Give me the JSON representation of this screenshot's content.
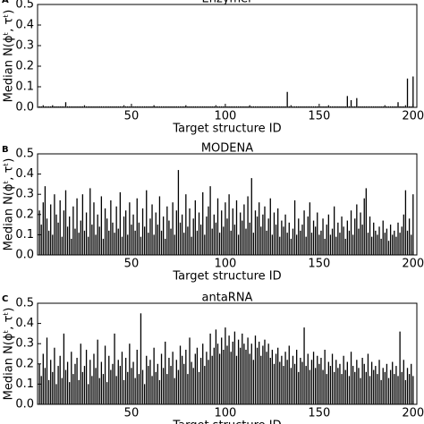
{
  "chart_data": [
    {
      "type": "bar",
      "panel_label": "A",
      "title": "Enzymer",
      "xlabel": "Target structure ID",
      "ylabel": "Median N(ϕᵗ, τᵗ)",
      "color": "#000000",
      "xlim": [
        0,
        202
      ],
      "ylim": [
        0,
        0.5
      ],
      "xticks": [
        50,
        100,
        150,
        200
      ],
      "yticks": [
        {
          "value": 0,
          "label": "0.0"
        },
        0.1,
        0.2,
        0.3,
        0.4,
        0.5
      ],
      "x": [
        1,
        2,
        3,
        4,
        5,
        6,
        7,
        8,
        9,
        10,
        11,
        12,
        13,
        14,
        15,
        16,
        17,
        18,
        19,
        20,
        21,
        22,
        23,
        24,
        25,
        26,
        27,
        28,
        29,
        30,
        31,
        32,
        33,
        34,
        35,
        36,
        37,
        38,
        39,
        40,
        41,
        42,
        43,
        44,
        45,
        46,
        47,
        48,
        49,
        50,
        51,
        52,
        53,
        54,
        55,
        56,
        57,
        58,
        59,
        60,
        61,
        62,
        63,
        64,
        65,
        66,
        67,
        68,
        69,
        70,
        71,
        72,
        73,
        74,
        75,
        76,
        77,
        78,
        79,
        80,
        81,
        82,
        83,
        84,
        85,
        86,
        87,
        88,
        89,
        90,
        91,
        92,
        93,
        94,
        95,
        96,
        97,
        98,
        99,
        100,
        101,
        102,
        103,
        104,
        105,
        106,
        107,
        108,
        109,
        110,
        111,
        112,
        113,
        114,
        115,
        116,
        117,
        118,
        119,
        120,
        121,
        122,
        123,
        124,
        125,
        126,
        127,
        128,
        129,
        130,
        131,
        132,
        133,
        134,
        135,
        136,
        137,
        138,
        139,
        140,
        141,
        142,
        143,
        144,
        145,
        146,
        147,
        148,
        149,
        150,
        151,
        152,
        153,
        154,
        155,
        156,
        157,
        158,
        159,
        160,
        161,
        162,
        163,
        164,
        165,
        166,
        167,
        168,
        169,
        170,
        171,
        172,
        173,
        174,
        175,
        176,
        177,
        178,
        179,
        180,
        181,
        182,
        183,
        184,
        185,
        186,
        187,
        188,
        189,
        190,
        191,
        192,
        193,
        194,
        195,
        196,
        197,
        198,
        199,
        200
      ],
      "values": [
        0.005,
        0.005,
        0.01,
        0.005,
        0.005,
        0.005,
        0.005,
        0.01,
        0.005,
        0.005,
        0.005,
        0.005,
        0.005,
        0.005,
        0.025,
        0.005,
        0.005,
        0.005,
        0.005,
        0.005,
        0.005,
        0.005,
        0.005,
        0.005,
        0.01,
        0.005,
        0.005,
        0.005,
        0.005,
        0.005,
        0.005,
        0.005,
        0.005,
        0.005,
        0.005,
        0.005,
        0.005,
        0.005,
        0.005,
        0.005,
        0.005,
        0.005,
        0.005,
        0.005,
        0.005,
        0.01,
        0.005,
        0.005,
        0.005,
        0.005,
        0.005,
        0.005,
        0.005,
        0.005,
        0.005,
        0.005,
        0.005,
        0.005,
        0.005,
        0.005,
        0.005,
        0.01,
        0.005,
        0.005,
        0.005,
        0.005,
        0.005,
        0.005,
        0.005,
        0.005,
        0.005,
        0.005,
        0.005,
        0.005,
        0.005,
        0.005,
        0.005,
        0.005,
        0.01,
        0.005,
        0.005,
        0.005,
        0.005,
        0.005,
        0.005,
        0.005,
        0.005,
        0.005,
        0.005,
        0.005,
        0.005,
        0.005,
        0.005,
        0.005,
        0.01,
        0.005,
        0.005,
        0.005,
        0.005,
        0.005,
        0.005,
        0.005,
        0.005,
        0.005,
        0.005,
        0.005,
        0.005,
        0.005,
        0.005,
        0.005,
        0.005,
        0.005,
        0.01,
        0.005,
        0.005,
        0.005,
        0.005,
        0.005,
        0.005,
        0.005,
        0.005,
        0.005,
        0.005,
        0.005,
        0.005,
        0.005,
        0.005,
        0.005,
        0.005,
        0.005,
        0.005,
        0.005,
        0.075,
        0.005,
        0.01,
        0.005,
        0.005,
        0.005,
        0.005,
        0.005,
        0.005,
        0.005,
        0.005,
        0.005,
        0.005,
        0.005,
        0.005,
        0.005,
        0.005,
        0.005,
        0.005,
        0.005,
        0.005,
        0.005,
        0.01,
        0.005,
        0.005,
        0.005,
        0.005,
        0.005,
        0.005,
        0.005,
        0.005,
        0.005,
        0.055,
        0.005,
        0.035,
        0.005,
        0.005,
        0.045,
        0.005,
        0.005,
        0.005,
        0.005,
        0.005,
        0.005,
        0.005,
        0.005,
        0.005,
        0.005,
        0.005,
        0.005,
        0.005,
        0.005,
        0.01,
        0.005,
        0.005,
        0.005,
        0.005,
        0.005,
        0.005,
        0.025,
        0.005,
        0.005,
        0.005,
        0.01,
        0.14,
        0.005,
        0.005,
        0.15
      ]
    },
    {
      "type": "bar",
      "panel_label": "B",
      "title": "MODENA",
      "xlabel": "Target structure ID",
      "ylabel": "Median N(ϕᵗ, τᵗ)",
      "color": "#000000",
      "xlim": [
        0,
        202
      ],
      "ylim": [
        0,
        0.5
      ],
      "xticks": [
        50,
        100,
        150,
        200
      ],
      "yticks": [
        {
          "value": 0,
          "label": "0.0"
        },
        0.1,
        0.2,
        0.3,
        0.4,
        0.5
      ],
      "x": [
        1,
        2,
        3,
        4,
        5,
        6,
        7,
        8,
        9,
        10,
        11,
        12,
        13,
        14,
        15,
        16,
        17,
        18,
        19,
        20,
        21,
        22,
        23,
        24,
        25,
        26,
        27,
        28,
        29,
        30,
        31,
        32,
        33,
        34,
        35,
        36,
        37,
        38,
        39,
        40,
        41,
        42,
        43,
        44,
        45,
        46,
        47,
        48,
        49,
        50,
        51,
        52,
        53,
        54,
        55,
        56,
        57,
        58,
        59,
        60,
        61,
        62,
        63,
        64,
        65,
        66,
        67,
        68,
        69,
        70,
        71,
        72,
        73,
        74,
        75,
        76,
        77,
        78,
        79,
        80,
        81,
        82,
        83,
        84,
        85,
        86,
        87,
        88,
        89,
        90,
        91,
        92,
        93,
        94,
        95,
        96,
        97,
        98,
        99,
        100,
        101,
        102,
        103,
        104,
        105,
        106,
        107,
        108,
        109,
        110,
        111,
        112,
        113,
        114,
        115,
        116,
        117,
        118,
        119,
        120,
        121,
        122,
        123,
        124,
        125,
        126,
        127,
        128,
        129,
        130,
        131,
        132,
        133,
        134,
        135,
        136,
        137,
        138,
        139,
        140,
        141,
        142,
        143,
        144,
        145,
        146,
        147,
        148,
        149,
        150,
        151,
        152,
        153,
        154,
        155,
        156,
        157,
        158,
        159,
        160,
        161,
        162,
        163,
        164,
        165,
        166,
        167,
        168,
        169,
        170,
        171,
        172,
        173,
        174,
        175,
        176,
        177,
        178,
        179,
        180,
        181,
        182,
        183,
        184,
        185,
        186,
        187,
        188,
        189,
        190,
        191,
        192,
        193,
        194,
        195,
        196,
        197,
        198,
        199,
        200
      ],
      "values": [
        0.22,
        0.15,
        0.26,
        0.34,
        0.18,
        0.12,
        0.25,
        0.1,
        0.3,
        0.2,
        0.16,
        0.27,
        0.09,
        0.22,
        0.32,
        0.14,
        0.19,
        0.08,
        0.24,
        0.13,
        0.28,
        0.11,
        0.17,
        0.3,
        0.12,
        0.21,
        0.09,
        0.33,
        0.15,
        0.26,
        0.1,
        0.2,
        0.14,
        0.29,
        0.08,
        0.23,
        0.18,
        0.12,
        0.27,
        0.16,
        0.11,
        0.24,
        0.13,
        0.31,
        0.09,
        0.19,
        0.22,
        0.1,
        0.26,
        0.15,
        0.2,
        0.12,
        0.28,
        0.16,
        0.09,
        0.23,
        0.14,
        0.32,
        0.11,
        0.18,
        0.25,
        0.1,
        0.21,
        0.15,
        0.29,
        0.12,
        0.19,
        0.08,
        0.24,
        0.17,
        0.13,
        0.26,
        0.1,
        0.22,
        0.42,
        0.16,
        0.2,
        0.11,
        0.3,
        0.14,
        0.23,
        0.09,
        0.18,
        0.27,
        0.12,
        0.21,
        0.15,
        0.31,
        0.1,
        0.19,
        0.24,
        0.34,
        0.13,
        0.2,
        0.16,
        0.28,
        0.11,
        0.22,
        0.14,
        0.26,
        0.18,
        0.3,
        0.12,
        0.23,
        0.15,
        0.27,
        0.1,
        0.21,
        0.17,
        0.25,
        0.13,
        0.29,
        0.16,
        0.38,
        0.11,
        0.22,
        0.19,
        0.26,
        0.14,
        0.2,
        0.24,
        0.12,
        0.18,
        0.28,
        0.1,
        0.21,
        0.15,
        0.23,
        0.09,
        0.17,
        0.14,
        0.2,
        0.11,
        0.16,
        0.08,
        0.13,
        0.27,
        0.1,
        0.18,
        0.12,
        0.15,
        0.22,
        0.09,
        0.19,
        0.26,
        0.11,
        0.17,
        0.14,
        0.21,
        0.1,
        0.12,
        0.18,
        0.08,
        0.15,
        0.2,
        0.1,
        0.13,
        0.24,
        0.09,
        0.16,
        0.11,
        0.19,
        0.14,
        0.08,
        0.17,
        0.12,
        0.22,
        0.1,
        0.18,
        0.25,
        0.13,
        0.21,
        0.15,
        0.28,
        0.33,
        0.11,
        0.19,
        0.09,
        0.16,
        0.12,
        0.1,
        0.14,
        0.08,
        0.17,
        0.11,
        0.13,
        0.07,
        0.15,
        0.1,
        0.12,
        0.09,
        0.16,
        0.11,
        0.14,
        0.2,
        0.32,
        0.12,
        0.18,
        0.1,
        0.3
      ]
    },
    {
      "type": "bar",
      "panel_label": "C",
      "title": "antaRNA",
      "xlabel": "Target structure ID",
      "ylabel": "Median N(ϕᵗ, τᵗ)",
      "color": "#000000",
      "xlim": [
        0,
        202
      ],
      "ylim": [
        0,
        0.5
      ],
      "xticks": [
        50,
        100,
        150,
        200
      ],
      "yticks": [
        {
          "value": 0,
          "label": "0.0"
        },
        0.1,
        0.2,
        0.3,
        0.4,
        0.5
      ],
      "x": [
        1,
        2,
        3,
        4,
        5,
        6,
        7,
        8,
        9,
        10,
        11,
        12,
        13,
        14,
        15,
        16,
        17,
        18,
        19,
        20,
        21,
        22,
        23,
        24,
        25,
        26,
        27,
        28,
        29,
        30,
        31,
        32,
        33,
        34,
        35,
        36,
        37,
        38,
        39,
        40,
        41,
        42,
        43,
        44,
        45,
        46,
        47,
        48,
        49,
        50,
        51,
        52,
        53,
        54,
        55,
        56,
        57,
        58,
        59,
        60,
        61,
        62,
        63,
        64,
        65,
        66,
        67,
        68,
        69,
        70,
        71,
        72,
        73,
        74,
        75,
        76,
        77,
        78,
        79,
        80,
        81,
        82,
        83,
        84,
        85,
        86,
        87,
        88,
        89,
        90,
        91,
        92,
        93,
        94,
        95,
        96,
        97,
        98,
        99,
        100,
        101,
        102,
        103,
        104,
        105,
        106,
        107,
        108,
        109,
        110,
        111,
        112,
        113,
        114,
        115,
        116,
        117,
        118,
        119,
        120,
        121,
        122,
        123,
        124,
        125,
        126,
        127,
        128,
        129,
        130,
        131,
        132,
        133,
        134,
        135,
        136,
        137,
        138,
        139,
        140,
        141,
        142,
        143,
        144,
        145,
        146,
        147,
        148,
        149,
        150,
        151,
        152,
        153,
        154,
        155,
        156,
        157,
        158,
        159,
        160,
        161,
        162,
        163,
        164,
        165,
        166,
        167,
        168,
        169,
        170,
        171,
        172,
        173,
        174,
        175,
        176,
        177,
        178,
        179,
        180,
        181,
        182,
        183,
        184,
        185,
        186,
        187,
        188,
        189,
        190,
        191,
        192,
        193,
        194,
        195,
        196,
        197,
        198,
        199,
        200
      ],
      "values": [
        0.2,
        0.14,
        0.25,
        0.18,
        0.33,
        0.12,
        0.22,
        0.16,
        0.28,
        0.1,
        0.19,
        0.24,
        0.13,
        0.35,
        0.17,
        0.21,
        0.11,
        0.26,
        0.15,
        0.2,
        0.23,
        0.12,
        0.3,
        0.16,
        0.19,
        0.27,
        0.1,
        0.22,
        0.14,
        0.25,
        0.18,
        0.32,
        0.13,
        0.21,
        0.15,
        0.29,
        0.11,
        0.24,
        0.17,
        0.2,
        0.35,
        0.14,
        0.22,
        0.19,
        0.26,
        0.12,
        0.23,
        0.16,
        0.3,
        0.18,
        0.21,
        0.13,
        0.27,
        0.15,
        0.45,
        0.17,
        0.1,
        0.24,
        0.19,
        0.22,
        0.14,
        0.28,
        0.16,
        0.2,
        0.12,
        0.25,
        0.18,
        0.31,
        0.15,
        0.23,
        0.19,
        0.26,
        0.13,
        0.22,
        0.17,
        0.29,
        0.24,
        0.2,
        0.27,
        0.15,
        0.33,
        0.21,
        0.18,
        0.25,
        0.28,
        0.16,
        0.23,
        0.3,
        0.19,
        0.26,
        0.22,
        0.35,
        0.24,
        0.28,
        0.37,
        0.3,
        0.25,
        0.33,
        0.27,
        0.38,
        0.29,
        0.34,
        0.26,
        0.31,
        0.36,
        0.24,
        0.32,
        0.28,
        0.35,
        0.3,
        0.27,
        0.33,
        0.25,
        0.3,
        0.22,
        0.34,
        0.28,
        0.31,
        0.24,
        0.29,
        0.32,
        0.26,
        0.3,
        0.23,
        0.27,
        0.2,
        0.25,
        0.28,
        0.21,
        0.24,
        0.19,
        0.26,
        0.22,
        0.29,
        0.18,
        0.24,
        0.2,
        0.27,
        0.16,
        0.23,
        0.21,
        0.38,
        0.19,
        0.25,
        0.17,
        0.22,
        0.26,
        0.18,
        0.24,
        0.2,
        0.23,
        0.17,
        0.27,
        0.15,
        0.21,
        0.19,
        0.25,
        0.16,
        0.22,
        0.18,
        0.2,
        0.15,
        0.24,
        0.17,
        0.21,
        0.14,
        0.26,
        0.19,
        0.16,
        0.22,
        0.18,
        0.13,
        0.23,
        0.2,
        0.16,
        0.25,
        0.14,
        0.21,
        0.17,
        0.19,
        0.15,
        0.22,
        0.12,
        0.18,
        0.16,
        0.2,
        0.13,
        0.17,
        0.21,
        0.15,
        0.19,
        0.14,
        0.36,
        0.16,
        0.22,
        0.12,
        0.18,
        0.15,
        0.2,
        0.14
      ]
    }
  ]
}
